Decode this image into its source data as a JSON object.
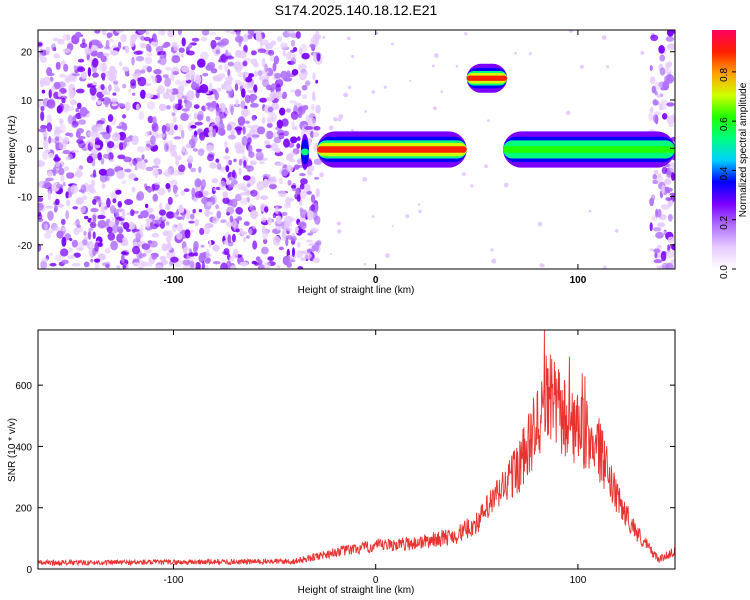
{
  "title": "S174.2025.140.18.12.E21",
  "colors": {
    "snr_line": "#e8322f",
    "noise": "#8a2be2",
    "colormap": [
      "#ffffff",
      "#e6cbff",
      "#b070ff",
      "#7a00ff",
      "#0000ff",
      "#00d0ff",
      "#00ff80",
      "#20ff00",
      "#d0ff00",
      "#ffa000",
      "#ff2000",
      "#ff0060"
    ]
  },
  "chart_data": [
    {
      "type": "heatmap",
      "title": "",
      "xlabel": "Height of straight line (km)",
      "ylabel": "Frequency (Hz)",
      "xlim": [
        -167,
        148
      ],
      "ylim": [
        -25,
        24.5
      ],
      "xticks": [
        -100,
        0,
        100
      ],
      "yticks": [
        -20,
        -10,
        0,
        10,
        20
      ],
      "colorbar": {
        "label": "Normalized spectral amplitude",
        "range": [
          0.0,
          0.97
        ],
        "ticks": [
          0.0,
          0.2,
          0.4,
          0.6,
          0.8
        ]
      },
      "noise_region_x": [
        -167,
        -28
      ],
      "noise_region_right_x": [
        136,
        148
      ],
      "bands": [
        {
          "x": [
            -37,
            -33
          ],
          "y": [
            -2,
            0.5
          ],
          "amplitude": 0.5
        },
        {
          "x": [
            -29,
            45
          ],
          "y": [
            -1.5,
            1.0
          ],
          "amplitude": 0.95
        },
        {
          "x": [
            45,
            65
          ],
          "y": [
            13.5,
            15.5
          ],
          "amplitude": 0.95
        },
        {
          "x": [
            63,
            148
          ],
          "y": [
            -1.5,
            1.0
          ],
          "amplitude": 0.6
        }
      ]
    },
    {
      "type": "line",
      "title": "",
      "xlabel": "Height of straight line (km)",
      "ylabel": "SNR (10 * v/v)",
      "xlim": [
        -167,
        148
      ],
      "ylim": [
        0,
        780
      ],
      "xticks": [
        -100,
        0,
        100
      ],
      "yticks": [
        0,
        200,
        400,
        600
      ],
      "series": [
        {
          "x": [
            -167,
            -100,
            -40,
            -20,
            0,
            20,
            40,
            50,
            60,
            70,
            75,
            80,
            85,
            90,
            95,
            100,
            105,
            110,
            115,
            120,
            130,
            140,
            148
          ],
          "values": [
            20,
            22,
            25,
            55,
            75,
            85,
            110,
            150,
            240,
            330,
            390,
            480,
            560,
            520,
            480,
            450,
            430,
            400,
            300,
            220,
            110,
            30,
            60
          ]
        }
      ]
    }
  ]
}
